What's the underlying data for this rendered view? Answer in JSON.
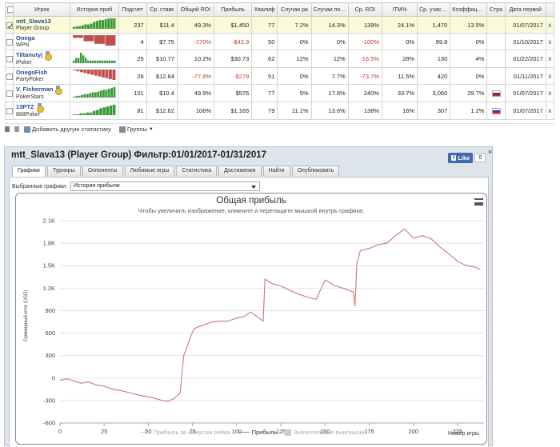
{
  "table": {
    "headers": [
      "Игрок",
      "История приб",
      "Подсчет",
      "Ср. ставк",
      "Общий ROI",
      "Прибыль",
      "Квалиф",
      "Случаи ра",
      "Случаи поздне",
      "Ср. ROI",
      "ITM%",
      "Ср. участни",
      "Коэффициен",
      "Стра",
      "Дата первой"
    ],
    "rows": [
      {
        "name": "mtt_Slava13",
        "group": "Player Group",
        "count": "237",
        "avg_buyin": "$11.4",
        "total_roi": "49.3%",
        "profit": "$1,450",
        "qual": "77",
        "early": "7.2%",
        "late": "14.3%",
        "avg_roi": "139%",
        "itm": "24.1%",
        "avg_entrants": "1,470",
        "coeff": "13.5%",
        "first_date": "01/07/2017",
        "checked": true,
        "medal": false,
        "flag": false,
        "spark": [
          2,
          3,
          3,
          4,
          5,
          5,
          6,
          8,
          9,
          10,
          10,
          11,
          12,
          12,
          12
        ],
        "spark_color": "#3a9a3a"
      },
      {
        "name": "Onega",
        "group": "WPN",
        "count": "4",
        "avg_buyin": "$7.75",
        "total_roi": "-170%",
        "profit": "-$42.9",
        "qual": "50",
        "early": "0%",
        "late": "0%",
        "avg_roi": "-100%",
        "itm": "0%",
        "avg_entrants": "99.8",
        "coeff": "0%",
        "first_date": "01/10/2017",
        "checked": false,
        "medal": false,
        "flag": false,
        "spark": [
          -3,
          -7,
          -10,
          -12
        ],
        "spark_color": "#c0504d"
      },
      {
        "name": "Tiltanutyj",
        "group": "iPoker",
        "count": "25",
        "avg_buyin": "$10.77",
        "total_roi": "10.2%",
        "profit": "$30.73",
        "qual": "62",
        "early": "12%",
        "late": "12%",
        "avg_roi": "-16.5%",
        "itm": "28%",
        "avg_entrants": "130",
        "coeff": "4%",
        "first_date": "01/22/2017",
        "checked": false,
        "medal": true,
        "flag": false,
        "spark": [
          1,
          2,
          2,
          4,
          3,
          2,
          1,
          1,
          1,
          1,
          1,
          1,
          1,
          1,
          1,
          1,
          1,
          1
        ],
        "spark_color": "#3a9a3a"
      },
      {
        "name": "OnegoFish",
        "group": "PartyPoker",
        "count": "26",
        "avg_buyin": "$12.64",
        "total_roi": "-77.6%",
        "profit": "-$279",
        "qual": "51",
        "early": "0%",
        "late": "7.7%",
        "avg_roi": "-73.7%",
        "itm": "11.5%",
        "avg_entrants": "420",
        "coeff": "0%",
        "first_date": "01/11/2017",
        "checked": false,
        "medal": false,
        "flag": false,
        "spark": [
          -1,
          -2,
          -3,
          -4,
          -5,
          -6,
          -7,
          -8,
          -9,
          -10,
          -11,
          -12
        ],
        "spark_color": "#c0504d"
      },
      {
        "name": "V. Fisherman",
        "group": "PokerStars",
        "count": "101",
        "avg_buyin": "$10.4",
        "total_roi": "49.9%",
        "profit": "$576",
        "qual": "77",
        "early": "5%",
        "late": "17.8%",
        "avg_roi": "240%",
        "itm": "33.7%",
        "avg_entrants": "3,060",
        "coeff": "29.7%",
        "first_date": "01/07/2017",
        "checked": false,
        "medal": true,
        "flag": true,
        "spark": [
          1,
          2,
          2,
          3,
          4,
          4,
          5,
          6,
          6,
          7,
          8,
          9,
          9,
          10,
          11,
          12
        ],
        "spark_color": "#3a9a3a"
      },
      {
        "name": "13PTZ",
        "group": "888Poker",
        "count": "81",
        "avg_buyin": "$12.62",
        "total_roi": "106%",
        "profit": "$1,165",
        "qual": "79",
        "early": "11.1%",
        "late": "13.6%",
        "avg_roi": "138%",
        "itm": "16%",
        "avg_entrants": "307",
        "coeff": "1.2%",
        "first_date": "01/07/2017",
        "checked": false,
        "medal": true,
        "flag": true,
        "spark": [
          1,
          1,
          2,
          2,
          3,
          3,
          5,
          6,
          8,
          9,
          10,
          11,
          12
        ],
        "spark_color": "#3a9a3a"
      }
    ],
    "delete_label": "x"
  },
  "toolbar": {
    "add_stat": "Добавить другую статистику",
    "groups": "Группы"
  },
  "window": {
    "title": "mtt_Slava13 (Player Group) Фильтр:01/01/2017-01/31/2017",
    "fb_like": "Like",
    "fb_count": "0",
    "close": "×",
    "tabs": [
      "Графики",
      "Турниры",
      "Оппоненты",
      "Любимые игры",
      "Статистика",
      "Достижения",
      "Найти",
      "Опубликовать"
    ],
    "select_label": "Выбранные графики:",
    "select_value": "История прибыли"
  },
  "chart_data": {
    "type": "line",
    "title": "Общая прибыль",
    "subtitle": "Чтобы увеличить изображение, кликните и перетащите мышкой внутрь графика.",
    "ylabel": "Суммарный итог (USD)",
    "xlabel": "Номер игры",
    "ylim": [
      -600,
      2100
    ],
    "xlim": [
      0,
      240
    ],
    "yticks": [
      -600,
      -300,
      0,
      300,
      600,
      900,
      1200,
      1500,
      1800,
      2100
    ],
    "ytick_labels": [
      "-600",
      "-300",
      "0",
      "300",
      "600",
      "900",
      "1.2K",
      "1.5K",
      "1.8K",
      "2.1K"
    ],
    "xticks": [
      0,
      25,
      50,
      75,
      100,
      125,
      150,
      175,
      200,
      225
    ],
    "legend": [
      "Прибыль за минусом рейка",
      "Прибыль",
      "Значительные выигрыши"
    ],
    "series": [
      {
        "name": "Прибыль",
        "color": "#c97878",
        "x": [
          0,
          4,
          8,
          12,
          16,
          20,
          25,
          30,
          35,
          40,
          45,
          50,
          55,
          58,
          61,
          64,
          68,
          70,
          72,
          74,
          76,
          80,
          85,
          90,
          95,
          100,
          104,
          108,
          115,
          116,
          120,
          125,
          130,
          135,
          140,
          145,
          150,
          155,
          160,
          166,
          167,
          168,
          170,
          175,
          180,
          185,
          190,
          195,
          200,
          205,
          210,
          215,
          220,
          225,
          230,
          235,
          238
        ],
        "y": [
          -30,
          -10,
          -40,
          -70,
          -50,
          -90,
          -110,
          -150,
          -170,
          -200,
          -230,
          -250,
          -280,
          -300,
          -310,
          -280,
          -200,
          300,
          420,
          560,
          660,
          700,
          740,
          760,
          760,
          800,
          820,
          880,
          760,
          1320,
          1260,
          1230,
          1170,
          1120,
          1080,
          1050,
          1310,
          1240,
          1200,
          1150,
          960,
          1520,
          1700,
          1730,
          1780,
          1800,
          1900,
          1990,
          1870,
          1900,
          1860,
          1750,
          1660,
          1560,
          1500,
          1480,
          1450
        ]
      }
    ]
  }
}
